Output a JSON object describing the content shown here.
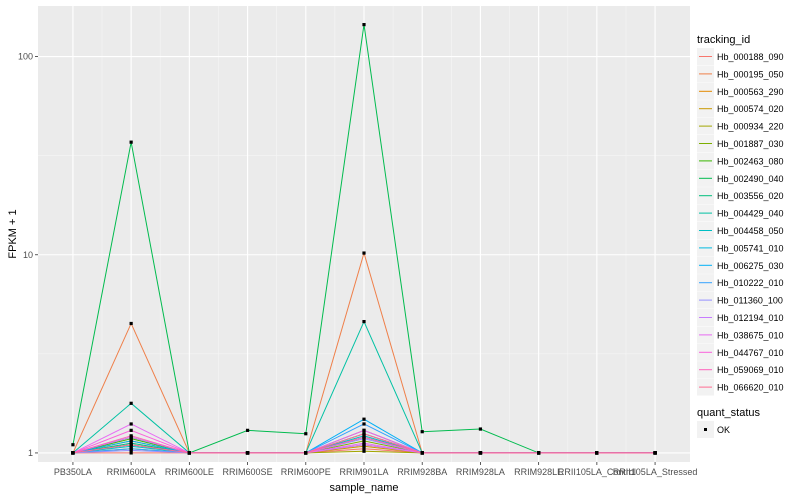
{
  "chart_data": {
    "type": "line",
    "xlabel": "sample_name",
    "ylabel": "FPKM + 1",
    "y_scale": "log10",
    "ylim": [
      0.9,
      180
    ],
    "y_ticks": [
      1,
      10,
      100
    ],
    "grid": true,
    "legend_position": "right",
    "categories": [
      "PB350LA",
      "RRIM600LA",
      "RRIM600LE",
      "RRIM600SE",
      "RRIM600PE",
      "RRIM901LA",
      "RRIM928BA",
      "RRIM928LA",
      "RRIM928LE",
      "RRII105LA_Control",
      "RRII105LA_Stressed"
    ],
    "legend_title": "tracking_id",
    "series": [
      {
        "name": "Hb_000188_090",
        "color": "#F8766D",
        "values": [
          1.0,
          1.0,
          1.0,
          1.0,
          1.0,
          1.05,
          1.0,
          1.0,
          1.0,
          1.0,
          1.0
        ]
      },
      {
        "name": "Hb_000195_050",
        "color": "#EF7F49",
        "values": [
          1.0,
          4.5,
          1.0,
          1.0,
          1.0,
          10.2,
          1.0,
          1.0,
          1.0,
          1.0,
          1.0
        ]
      },
      {
        "name": "Hb_000563_290",
        "color": "#E38900",
        "values": [
          1.0,
          1.1,
          1.0,
          1.0,
          1.0,
          1.1,
          1.0,
          1.0,
          1.0,
          1.0,
          1.0
        ]
      },
      {
        "name": "Hb_000574_020",
        "color": "#C99800",
        "values": [
          1.0,
          1.15,
          1.0,
          1.0,
          1.0,
          1.08,
          1.0,
          1.0,
          1.0,
          1.0,
          1.0
        ]
      },
      {
        "name": "Hb_000934_220",
        "color": "#A3A500",
        "values": [
          1.0,
          1.05,
          1.0,
          1.0,
          1.0,
          1.02,
          1.0,
          1.0,
          1.0,
          1.0,
          1.0
        ]
      },
      {
        "name": "Hb_001887_030",
        "color": "#7CAE00",
        "values": [
          1.0,
          1.2,
          1.0,
          1.0,
          1.0,
          1.15,
          1.0,
          1.0,
          1.0,
          1.0,
          1.0
        ]
      },
      {
        "name": "Hb_002463_080",
        "color": "#39B600",
        "values": [
          1.0,
          1.18,
          1.0,
          1.0,
          1.0,
          1.2,
          1.0,
          1.0,
          1.0,
          1.0,
          1.0
        ]
      },
      {
        "name": "Hb_002490_040",
        "color": "#00BB4E",
        "values": [
          1.1,
          37.0,
          1.0,
          1.3,
          1.25,
          145.0,
          1.28,
          1.32,
          1.0,
          1.0,
          1.0
        ]
      },
      {
        "name": "Hb_003556_020",
        "color": "#00BF7D",
        "values": [
          1.0,
          1.12,
          1.0,
          1.0,
          1.0,
          1.25,
          1.0,
          1.0,
          1.0,
          1.0,
          1.0
        ]
      },
      {
        "name": "Hb_004429_040",
        "color": "#00C1A3",
        "values": [
          1.0,
          1.78,
          1.0,
          1.0,
          1.0,
          4.6,
          1.0,
          1.0,
          1.0,
          1.0,
          1.0
        ]
      },
      {
        "name": "Hb_004458_050",
        "color": "#00BFC4",
        "values": [
          1.0,
          1.08,
          1.0,
          1.0,
          1.0,
          1.22,
          1.0,
          1.0,
          1.0,
          1.0,
          1.0
        ]
      },
      {
        "name": "Hb_005741_010",
        "color": "#00BAE0",
        "values": [
          1.0,
          1.1,
          1.0,
          1.0,
          1.0,
          1.3,
          1.0,
          1.0,
          1.0,
          1.0,
          1.0
        ]
      },
      {
        "name": "Hb_006275_030",
        "color": "#00B0F6",
        "values": [
          1.0,
          1.15,
          1.0,
          1.0,
          1.0,
          1.48,
          1.0,
          1.0,
          1.0,
          1.0,
          1.0
        ]
      },
      {
        "name": "Hb_010222_010",
        "color": "#35A2FF",
        "values": [
          1.0,
          1.05,
          1.0,
          1.0,
          1.0,
          1.4,
          1.0,
          1.0,
          1.0,
          1.0,
          1.0
        ]
      },
      {
        "name": "Hb_011360_100",
        "color": "#9590FF",
        "values": [
          1.0,
          1.03,
          1.0,
          1.0,
          1.0,
          1.18,
          1.0,
          1.0,
          1.0,
          1.0,
          1.0
        ]
      },
      {
        "name": "Hb_012194_010",
        "color": "#C77CFF",
        "values": [
          1.0,
          1.2,
          1.0,
          1.0,
          1.0,
          1.1,
          1.0,
          1.0,
          1.0,
          1.0,
          1.0
        ]
      },
      {
        "name": "Hb_038675_010",
        "color": "#E76BF3",
        "values": [
          1.0,
          1.4,
          1.0,
          1.0,
          1.0,
          1.12,
          1.0,
          1.0,
          1.0,
          1.0,
          1.0
        ]
      },
      {
        "name": "Hb_044767_010",
        "color": "#FA62DB",
        "values": [
          1.0,
          1.3,
          1.0,
          1.0,
          1.0,
          1.3,
          1.0,
          1.0,
          1.0,
          1.0,
          1.0
        ]
      },
      {
        "name": "Hb_059069_010",
        "color": "#FF62BC",
        "values": [
          1.0,
          1.22,
          1.0,
          1.0,
          1.0,
          1.2,
          1.0,
          1.0,
          1.0,
          1.0,
          1.0
        ]
      },
      {
        "name": "Hb_066620_010",
        "color": "#FF6C91",
        "values": [
          1.0,
          1.1,
          1.0,
          1.0,
          1.0,
          1.25,
          1.0,
          1.0,
          1.0,
          1.0,
          1.0
        ]
      }
    ],
    "shape_legend": {
      "title": "quant_status",
      "entries": [
        "OK"
      ]
    }
  }
}
